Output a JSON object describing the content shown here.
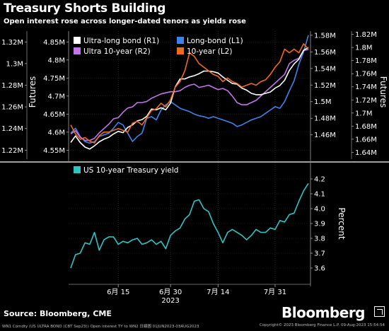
{
  "header": {
    "title": "Treasury Shorts Building",
    "subtitle": "Open interest rose across longer-dated tenors as yields rose"
  },
  "footer": {
    "source": "Source: Bloomberg, CME",
    "brand": "Bloomberg",
    "fine_print": "WN1 Comdty (US ULTRA BOND (CBT Sep23)) Open interest TY to WN2  日線圖 01JUN2023-03AUG2023",
    "fine_print_right": "Copyright© 2023 Bloomberg Finance L.P.     09-Aug-2023 15:54:54"
  },
  "colors": {
    "ultra_long_bond": "#ffffff",
    "long_bond": "#3d84e8",
    "ultra_10_year": "#c374e8",
    "ten_year": "#f06a1c",
    "us_10y_yield": "#2ec4c4",
    "background": "#000000"
  },
  "chart_data": [
    {
      "type": "line",
      "x_axis": {
        "tick_labels": [
          "6月 15",
          "6月 30",
          "7月 14",
          "7月 31"
        ],
        "year_label": "2023"
      },
      "left_axis_outer": {
        "label": "",
        "range": [
          1.215,
          1.33
        ],
        "ticks": [
          1.22,
          1.24,
          1.26,
          1.28,
          1.3,
          1.32
        ],
        "tick_labels": [
          "1.22M",
          "1.24M",
          "1.26M",
          "1.28M",
          "1.3M",
          "1.32M"
        ]
      },
      "left_axis_inner": {
        "label": "Futures",
        "range": [
          4.535,
          4.88
        ],
        "ticks": [
          4.55,
          4.6,
          4.65,
          4.7,
          4.75,
          4.8,
          4.85
        ],
        "tick_labels": [
          "4.55M",
          "4.6M",
          "4.65M",
          "4.7M",
          "4.75M",
          "4.8M",
          "4.85M"
        ]
      },
      "right_axis_inner": {
        "label": "",
        "range": [
          1.435,
          1.585
        ],
        "ticks": [
          1.46,
          1.48,
          1.5,
          1.52,
          1.54,
          1.56,
          1.58
        ],
        "tick_labels": [
          "1.46M",
          "1.48M",
          "1.5M",
          "1.52M",
          "1.54M",
          "1.56M",
          "1.58M"
        ]
      },
      "right_axis_outer": {
        "label": "Futures",
        "range": [
          1.635,
          1.825
        ],
        "ticks": [
          1.64,
          1.66,
          1.68,
          1.7,
          1.72,
          1.74,
          1.76,
          1.78,
          1.8,
          1.82
        ],
        "tick_labels": [
          "1.64M",
          "1.66M",
          "1.68M",
          "1.7M",
          "1.72M",
          "1.74M",
          "1.76M",
          "1.78M",
          "1.8M",
          "1.82M"
        ]
      },
      "legend_placement": "top-left",
      "series": [
        {
          "name": "Ultra-long bond (R1)",
          "color_key": "ultra_long_bond",
          "axis": "right_axis_outer",
          "values": [
            1.655,
            1.665,
            1.655,
            1.648,
            1.645,
            1.65,
            1.656,
            1.66,
            1.663,
            1.668,
            1.672,
            1.67,
            1.678,
            1.682,
            1.688,
            1.69,
            1.695,
            1.706,
            1.705,
            1.708,
            1.705,
            1.715,
            1.74,
            1.752,
            1.752,
            1.755,
            1.757,
            1.76,
            1.764,
            1.764,
            1.763,
            1.761,
            1.755,
            1.75,
            1.745,
            1.744,
            1.738,
            1.735,
            1.73,
            1.728,
            1.728,
            1.73,
            1.732,
            1.738,
            1.742,
            1.75,
            1.765,
            1.775,
            1.782,
            1.796,
            1.8
          ]
        },
        {
          "name": "Long-bond (L1)",
          "color_key": "long_bond",
          "axis": "right_axis_inner",
          "values": [
            1.462,
            1.468,
            1.458,
            1.452,
            1.45,
            1.452,
            1.458,
            1.46,
            1.462,
            1.468,
            1.475,
            1.472,
            1.462,
            1.452,
            1.458,
            1.462,
            1.48,
            1.482,
            1.478,
            1.49,
            1.496,
            1.5,
            1.496,
            1.492,
            1.49,
            1.488,
            1.485,
            1.483,
            1.482,
            1.48,
            1.482,
            1.48,
            1.478,
            1.476,
            1.474,
            1.47,
            1.472,
            1.475,
            1.478,
            1.48,
            1.482,
            1.486,
            1.49,
            1.494,
            1.492,
            1.5,
            1.513,
            1.525,
            1.545,
            1.56,
            1.58
          ]
        },
        {
          "name": "Ultra 10-year (R2)",
          "color_key": "ultra_10_year",
          "axis": "left_axis_outer",
          "values": [
            1.235,
            1.238,
            1.232,
            1.229,
            1.229,
            1.231,
            1.236,
            1.24,
            1.244,
            1.249,
            1.25,
            1.255,
            1.259,
            1.26,
            1.264,
            1.264,
            1.265,
            1.268,
            1.27,
            1.272,
            1.273,
            1.274,
            1.274,
            1.275,
            1.278,
            1.28,
            1.281,
            1.278,
            1.279,
            1.28,
            1.278,
            1.276,
            1.277,
            1.275,
            1.27,
            1.264,
            1.262,
            1.262,
            1.264,
            1.266,
            1.27,
            1.274,
            1.278,
            1.282,
            1.286,
            1.29,
            1.3,
            1.303,
            1.305,
            1.312,
            1.313
          ]
        },
        {
          "name": "10-year (L2)",
          "color_key": "ten_year",
          "axis": "left_axis_inner",
          "values": [
            4.62,
            4.595,
            4.58,
            4.585,
            4.575,
            4.57,
            4.59,
            4.6,
            4.6,
            4.605,
            4.61,
            4.605,
            4.6,
            4.625,
            4.63,
            4.62,
            4.64,
            4.66,
            4.665,
            4.68,
            4.67,
            4.69,
            4.725,
            4.74,
            4.77,
            4.82,
            4.81,
            4.79,
            4.78,
            4.77,
            4.76,
            4.755,
            4.74,
            4.75,
            4.74,
            4.735,
            4.725,
            4.73,
            4.735,
            4.73,
            4.74,
            4.745,
            4.76,
            4.78,
            4.795,
            4.83,
            4.82,
            4.83,
            4.82,
            4.845,
            4.83
          ]
        }
      ]
    },
    {
      "type": "line",
      "x_axis": {
        "tick_labels": [
          "6月 15",
          "6月 30",
          "7月 14",
          "7月 31"
        ],
        "year_label": "2023"
      },
      "right_axis": {
        "label": "Percent",
        "range": [
          3.5,
          4.3
        ],
        "ticks": [
          3.6,
          3.7,
          3.8,
          3.9,
          4.0,
          4.1,
          4.2
        ],
        "tick_labels": [
          "3.6",
          "3.7",
          "3.8",
          "3.9",
          "4.0",
          "4.1",
          "4.2"
        ]
      },
      "legend_placement": "top-left",
      "series": [
        {
          "name": "US 10-year Treasury yield",
          "color_key": "us_10y_yield",
          "axis": "right_axis",
          "values": [
            3.6,
            3.69,
            3.7,
            3.77,
            3.76,
            3.84,
            3.72,
            3.79,
            3.81,
            3.81,
            3.76,
            3.78,
            3.77,
            3.79,
            3.8,
            3.76,
            3.77,
            3.79,
            3.76,
            3.78,
            3.73,
            3.82,
            3.85,
            3.87,
            3.93,
            3.96,
            4.05,
            4.06,
            4.0,
            3.98,
            3.9,
            3.84,
            3.77,
            3.84,
            3.86,
            3.84,
            3.82,
            3.79,
            3.82,
            3.86,
            3.84,
            3.84,
            3.87,
            3.86,
            3.92,
            3.91,
            3.96,
            3.97,
            4.05,
            4.12,
            4.17
          ]
        }
      ]
    }
  ]
}
